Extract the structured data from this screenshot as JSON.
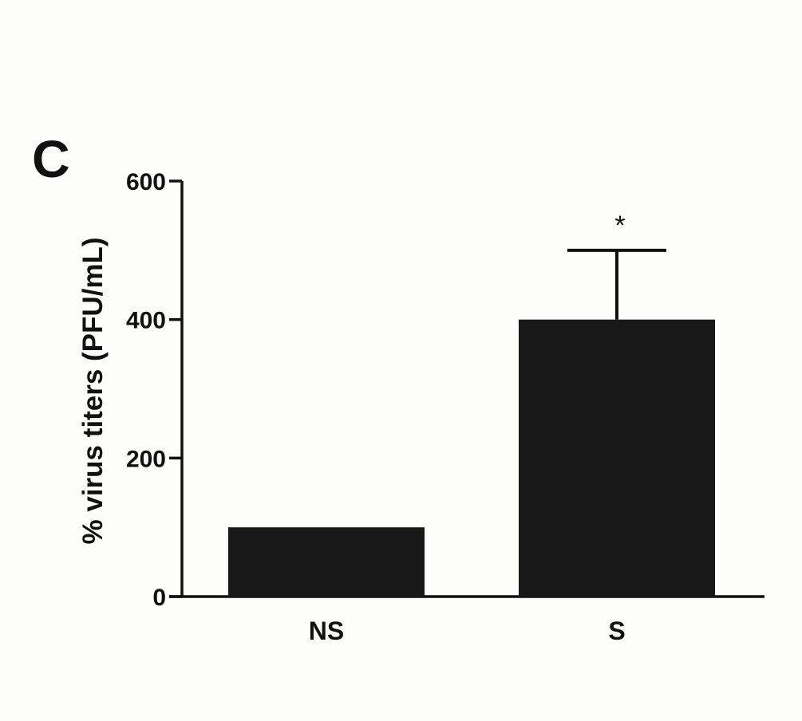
{
  "panel_label": "C",
  "chart_data": {
    "type": "bar",
    "title": "",
    "xlabel": "",
    "ylabel": "% virus titers (PFU/mL)",
    "categories": [
      "NS",
      "S"
    ],
    "values": [
      100,
      400
    ],
    "error_upper": [
      0,
      100
    ],
    "annotations": [
      "",
      "*"
    ],
    "ylim": [
      0,
      600
    ],
    "yticks": [
      0,
      200,
      400,
      600
    ],
    "ytick_labels": [
      "0",
      "200",
      "400",
      "600"
    ],
    "grid": false,
    "bar_color": "#181818"
  }
}
